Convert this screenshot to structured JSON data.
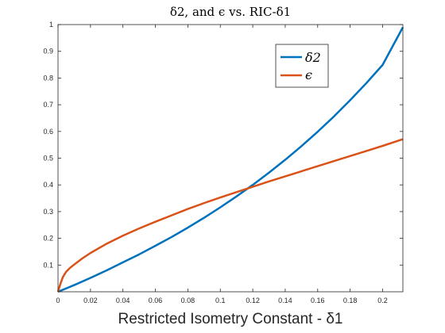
{
  "chart_data": {
    "type": "line",
    "title": "δ2, and ϵ vs. RIC-δ1",
    "xlabel": "Restricted Isometry Constant - δ1",
    "ylabel": "",
    "xlim": [
      0,
      0.2125
    ],
    "ylim": [
      0,
      1
    ],
    "x_ticks": [
      "0",
      "0.02",
      "0.04",
      "0.06",
      "0.08",
      "0.1",
      "0.12",
      "0.14",
      "0.16",
      "0.18",
      "0.2"
    ],
    "y_ticks": [
      "0.1",
      "0.2",
      "0.3",
      "0.4",
      "0.5",
      "0.6",
      "0.7",
      "0.8",
      "0.9",
      "1"
    ],
    "grid": false,
    "legend_position": "top-right",
    "series": [
      {
        "name": "δ2",
        "color": "#0072BD",
        "x": [
          0,
          0.01,
          0.02,
          0.03,
          0.04,
          0.05,
          0.06,
          0.07,
          0.08,
          0.09,
          0.1,
          0.11,
          0.12,
          0.13,
          0.14,
          0.15,
          0.16,
          0.17,
          0.18,
          0.19,
          0.2,
          0.2125
        ],
        "y": [
          0,
          0.025,
          0.052,
          0.08,
          0.11,
          0.14,
          0.172,
          0.205,
          0.24,
          0.277,
          0.316,
          0.357,
          0.4,
          0.446,
          0.494,
          0.545,
          0.599,
          0.656,
          0.717,
          0.781,
          0.849,
          0.99
        ]
      },
      {
        "name": "ϵ",
        "color": "#D95319",
        "x": [
          0,
          0.0015,
          0.003,
          0.005,
          0.0075,
          0.01,
          0.015,
          0.02,
          0.03,
          0.04,
          0.05,
          0.06,
          0.07,
          0.08,
          0.09,
          0.1,
          0.11,
          0.12,
          0.13,
          0.14,
          0.15,
          0.16,
          0.17,
          0.18,
          0.19,
          0.2,
          0.2125
        ],
        "y": [
          0,
          0.03,
          0.055,
          0.075,
          0.09,
          0.102,
          0.125,
          0.145,
          0.18,
          0.21,
          0.237,
          0.262,
          0.286,
          0.31,
          0.332,
          0.353,
          0.373,
          0.393,
          0.413,
          0.432,
          0.451,
          0.47,
          0.489,
          0.508,
          0.527,
          0.546,
          0.571
        ]
      }
    ]
  }
}
